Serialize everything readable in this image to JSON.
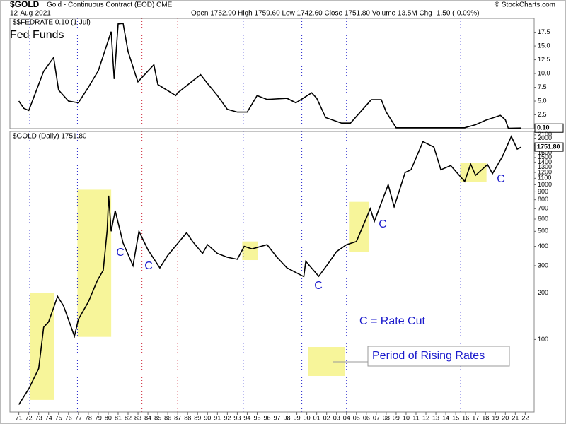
{
  "header": {
    "symbol": "$GOLD",
    "name": "Gold - Continuous Contract (EOD) CME",
    "date": "12-Aug-2021",
    "quote": "Open 1752.90  High 1759.60  Low 1742.60  Close 1751.80  Volume 13.5M  Chg -1.50 (-0.09%)",
    "credit": "© StockCharts.com"
  },
  "chart_data": [
    {
      "type": "line",
      "title": "$$FEDRATE 0.10 (1 Jul)",
      "label": "Fed Funds",
      "last_value_label": "0.10",
      "series": [
        {
          "name": "$$FEDRATE",
          "color": "#000000",
          "x": [
            1971,
            1971.5,
            1972,
            1973.5,
            1974.5,
            1975,
            1976,
            1977,
            1978,
            1979,
            1980.3,
            1980.6,
            1981,
            1981.5,
            1982,
            1982.8,
            1983,
            1984.6,
            1985,
            1986.8,
            1987,
            1989.3,
            1990,
            1991,
            1992,
            1993,
            1994,
            1995,
            1996,
            1998,
            1998.9,
            2000.5,
            2001,
            2001.9,
            2003.5,
            2004.4,
            2006.5,
            2007.5,
            2008,
            2009,
            2015.9,
            2017,
            2018,
            2019.5,
            2020,
            2020.3,
            2021.6
          ],
          "values": [
            5,
            3.7,
            3.3,
            10.4,
            12.9,
            7,
            5,
            4.7,
            7.5,
            10.5,
            17.6,
            9,
            19,
            19.1,
            14,
            9.5,
            8.5,
            11.6,
            8,
            6,
            6.5,
            9.8,
            8.2,
            6,
            3.5,
            3,
            3,
            6,
            5.3,
            5.5,
            4.7,
            6.5,
            5.5,
            2,
            1,
            1,
            5.25,
            5.25,
            3,
            0.15,
            0.15,
            0.7,
            1.5,
            2.4,
            1.6,
            0.05,
            0.1
          ]
        }
      ],
      "xlim": [
        1970.1,
        2022.9
      ],
      "ylim": [
        0,
        19.5
      ],
      "yticks": [
        2.5,
        {
          "value": 5,
          "label": "5.0"
        },
        7.5,
        {
          "value": 10,
          "label": "10.0"
        },
        12.5,
        {
          "value": 15,
          "label": "15.0"
        },
        17.5
      ]
    },
    {
      "type": "line",
      "title": "$GOLD (Daily) 1751.80",
      "last_value_label": "1751.80",
      "log_scale": true,
      "series": [
        {
          "name": "$GOLD",
          "color": "#000000",
          "x": [
            1971,
            1972,
            1973,
            1973.5,
            1974,
            1974.9,
            1975.5,
            1976.6,
            1977,
            1978,
            1978.9,
            1979.5,
            1979.9,
            1980.05,
            1980.3,
            1980.7,
            1981.5,
            1982.5,
            1983.1,
            1984,
            1985.2,
            1986,
            1987.9,
            1988.5,
            1989.5,
            1990,
            1991,
            1992,
            1993,
            1993.7,
            1994.5,
            1996,
            1997,
            1998,
            1999.7,
            1999.9,
            2001.2,
            2002,
            2003,
            2004,
            2005,
            2006.4,
            2006.8,
            2008.2,
            2008.8,
            2009.9,
            2010.5,
            2011.7,
            2012.8,
            2013.5,
            2014.5,
            2015.9,
            2016.5,
            2017,
            2018.2,
            2018.7,
            2019.7,
            2020.6,
            2021.2,
            2021.6
          ],
          "values": [
            38,
            48,
            65,
            120,
            130,
            190,
            165,
            105,
            135,
            175,
            240,
            280,
            510,
            850,
            500,
            680,
            420,
            300,
            500,
            380,
            290,
            350,
            490,
            430,
            360,
            410,
            360,
            340,
            330,
            400,
            385,
            410,
            340,
            290,
            255,
            320,
            256,
            300,
            370,
            410,
            430,
            700,
            580,
            1000,
            720,
            1200,
            1250,
            1900,
            1750,
            1250,
            1330,
            1050,
            1360,
            1150,
            1350,
            1180,
            1520,
            2050,
            1700,
            1751.8
          ]
        }
      ],
      "xlim": [
        1970.1,
        2022.9
      ],
      "ylim": [
        34,
        2210
      ],
      "yticks": [
        100,
        200,
        300,
        400,
        500,
        600,
        700,
        800,
        900,
        1000,
        1100,
        1200,
        1300,
        1400,
        1500,
        1600,
        1800,
        2000,
        2100
      ],
      "xticks": [
        {
          "value": 1971,
          "label": "71"
        },
        {
          "value": 1972,
          "label": "72"
        },
        {
          "value": 1973,
          "label": "73"
        },
        {
          "value": 1974,
          "label": "74"
        },
        {
          "value": 1975,
          "label": "75"
        },
        {
          "value": 1976,
          "label": "76"
        },
        {
          "value": 1977,
          "label": "77"
        },
        {
          "value": 1978,
          "label": "78"
        },
        {
          "value": 1979,
          "label": "79"
        },
        {
          "value": 1980,
          "label": "80"
        },
        {
          "value": 1981,
          "label": "81"
        },
        {
          "value": 1982,
          "label": "82"
        },
        {
          "value": 1983,
          "label": "83"
        },
        {
          "value": 1984,
          "label": "84"
        },
        {
          "value": 1985,
          "label": "85"
        },
        {
          "value": 1986,
          "label": "86"
        },
        {
          "value": 1987,
          "label": "87"
        },
        {
          "value": 1988,
          "label": "88"
        },
        {
          "value": 1989,
          "label": "89"
        },
        {
          "value": 1990,
          "label": "90"
        },
        {
          "value": 1991,
          "label": "91"
        },
        {
          "value": 1992,
          "label": "92"
        },
        {
          "value": 1993,
          "label": "93"
        },
        {
          "value": 1994,
          "label": "94"
        },
        {
          "value": 1995,
          "label": "95"
        },
        {
          "value": 1996,
          "label": "96"
        },
        {
          "value": 1997,
          "label": "97"
        },
        {
          "value": 1998,
          "label": "98"
        },
        {
          "value": 1999,
          "label": "99"
        },
        {
          "value": 2000,
          "label": "00"
        },
        {
          "value": 2001,
          "label": "01"
        },
        {
          "value": 2002,
          "label": "02"
        },
        {
          "value": 2003,
          "label": "03"
        },
        {
          "value": 2004,
          "label": "04"
        },
        {
          "value": 2005,
          "label": "05"
        },
        {
          "value": 2006,
          "label": "06"
        },
        {
          "value": 2007,
          "label": "07"
        },
        {
          "value": 2008,
          "label": "08"
        },
        {
          "value": 2009,
          "label": "09"
        },
        {
          "value": 2010,
          "label": "10"
        },
        {
          "value": 2011,
          "label": "11"
        },
        {
          "value": 2012,
          "label": "12"
        },
        {
          "value": 2013,
          "label": "13"
        },
        {
          "value": 2014,
          "label": "14"
        },
        {
          "value": 2015,
          "label": "15"
        },
        {
          "value": 2016,
          "label": "16"
        },
        {
          "value": 2017,
          "label": "17"
        },
        {
          "value": 2018,
          "label": "18"
        },
        {
          "value": 2019,
          "label": "19"
        },
        {
          "value": 2020,
          "label": "20"
        },
        {
          "value": 2021,
          "label": "21"
        },
        {
          "value": 2022,
          "label": "22"
        }
      ],
      "shaded_periods": [
        {
          "x": [
            1972.1,
            1974.55
          ],
          "y": [
            40.7,
            199
          ],
          "color": "#f7f59a"
        },
        {
          "x": [
            1976.9,
            1980.3
          ],
          "y": [
            104,
            929
          ],
          "color": "#f7f59a"
        },
        {
          "x": [
            1993.5,
            1995.05
          ],
          "y": [
            326,
            430
          ],
          "color": "#f7f59a"
        },
        {
          "x": [
            2004.25,
            2006.3
          ],
          "y": [
            366,
            775
          ],
          "color": "#f7f59a"
        },
        {
          "x": [
            2015.45,
            2018.1
          ],
          "y": [
            1043,
            1388
          ],
          "color": "#f7f59a"
        }
      ],
      "event_lines": [
        {
          "x": 1972.1,
          "color": "#2222cc"
        },
        {
          "x": 1976.9,
          "color": "#2222cc"
        },
        {
          "x": 1983.4,
          "color": "#cc2233"
        },
        {
          "x": 1987.0,
          "color": "#cc2233"
        },
        {
          "x": 1993.6,
          "color": "#2222cc"
        },
        {
          "x": 1999.5,
          "color": "#2222cc"
        },
        {
          "x": 2004.0,
          "color": "#2222cc"
        },
        {
          "x": 2015.5,
          "color": "#2222cc"
        }
      ],
      "annotations": [
        "C",
        "C",
        "C",
        "C",
        "C"
      ],
      "legend": [
        "C = Rate Cut",
        "Period of Rising Rates"
      ]
    }
  ]
}
